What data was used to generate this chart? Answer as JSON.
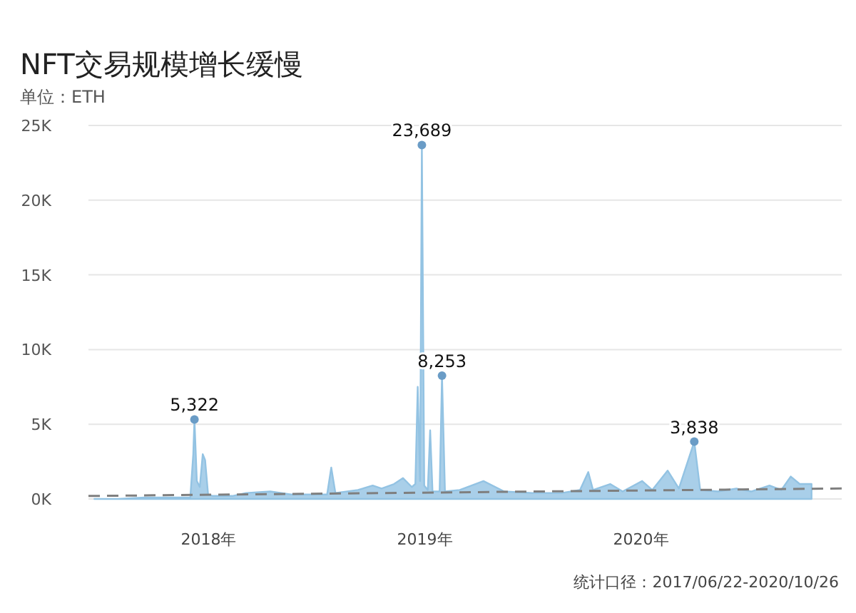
{
  "chart_data": {
    "type": "area",
    "title": "NFT交易规模增长缓慢",
    "subtitle": "单位：ETH",
    "annotations": [
      "统计口径：2017/06/22-2020/10/26"
    ],
    "xlim": [
      "2017-06-12",
      "2020-12-05"
    ],
    "xticks": [
      {
        "value": "2018-01-01",
        "label": "2018年"
      },
      {
        "value": "2019-01-01",
        "label": "2019年"
      },
      {
        "value": "2020-01-01",
        "label": "2020年"
      }
    ],
    "ylim": [
      0,
      25000
    ],
    "yticks": [
      {
        "value": 0,
        "label": "0K"
      },
      {
        "value": 5000,
        "label": "5K"
      },
      {
        "value": 10000,
        "label": "10K"
      },
      {
        "value": 15000,
        "label": "15K"
      },
      {
        "value": 20000,
        "label": "20K"
      },
      {
        "value": 25000,
        "label": "25K"
      }
    ],
    "grid": "y",
    "series": [
      {
        "color": "#93c3e3",
        "x": [
          "2017-06-22",
          "2017-08-01",
          "2017-09-15",
          "2017-11-01",
          "2017-12-01",
          "2017-12-06",
          "2017-12-08",
          "2017-12-12",
          "2017-12-17",
          "2017-12-22",
          "2017-12-26",
          "2017-12-31",
          "2018-01-08",
          "2018-02-10",
          "2018-03-05",
          "2018-04-15",
          "2018-05-20",
          "2018-07-20",
          "2018-07-27",
          "2018-08-03",
          "2018-09-10",
          "2018-10-05",
          "2018-10-20",
          "2018-11-10",
          "2018-11-25",
          "2018-12-10",
          "2018-12-16",
          "2018-12-20",
          "2018-12-24",
          "2018-12-27",
          "2018-12-31",
          "2019-01-06",
          "2019-01-10",
          "2019-01-14",
          "2019-01-26",
          "2019-01-30",
          "2019-02-04",
          "2019-03-01",
          "2019-04-10",
          "2019-05-15",
          "2019-07-01",
          "2019-08-20",
          "2019-09-20",
          "2019-10-04",
          "2019-10-12",
          "2019-11-10",
          "2019-12-01",
          "2020-01-03",
          "2020-01-20",
          "2020-02-15",
          "2020-03-05",
          "2020-03-31",
          "2020-04-10",
          "2020-05-10",
          "2020-06-10",
          "2020-07-05",
          "2020-08-05",
          "2020-08-25",
          "2020-09-10",
          "2020-09-25",
          "2020-10-15"
        ],
        "values": [
          0,
          0,
          100,
          100,
          100,
          3000,
          5322,
          1200,
          800,
          3000,
          2600,
          300,
          200,
          200,
          400,
          500,
          300,
          300,
          2100,
          400,
          600,
          900,
          700,
          1000,
          1400,
          800,
          1000,
          7500,
          1200,
          23689,
          900,
          600,
          4600,
          500,
          500,
          8253,
          500,
          600,
          1200,
          500,
          400,
          400,
          600,
          1800,
          600,
          1000,
          500,
          1200,
          600,
          1900,
          700,
          3838,
          600,
          500,
          700,
          500,
          900,
          600,
          1500,
          1000,
          1000
        ],
        "value_labels": [
          null,
          null,
          null,
          null,
          null,
          null,
          "5,322",
          null,
          null,
          null,
          null,
          null,
          null,
          null,
          null,
          null,
          null,
          null,
          null,
          null,
          null,
          null,
          null,
          null,
          null,
          null,
          null,
          null,
          null,
          "23,689",
          null,
          null,
          null,
          null,
          null,
          "8,253",
          null,
          null,
          null,
          null,
          null,
          null,
          null,
          null,
          null,
          null,
          null,
          null,
          null,
          null,
          null,
          "3,838",
          null,
          null,
          null,
          null,
          null,
          null,
          null,
          null,
          null
        ]
      },
      {
        "type": "line",
        "color": "#7f7f7f",
        "line_style": "dashed",
        "x": [
          "2017-06-12",
          "2020-12-05"
        ],
        "values": [
          200,
          700
        ]
      }
    ]
  }
}
